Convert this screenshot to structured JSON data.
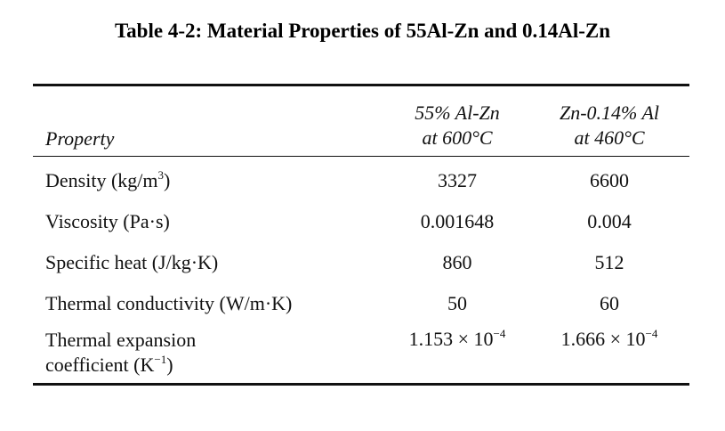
{
  "caption": "Table 4-2: Material Properties of 55Al-Zn and 0.14Al-Zn",
  "table": {
    "headers": {
      "property": "Property",
      "col1_line1": "55% Al-Zn",
      "col1_line2": "at 600°C",
      "col2_line1": "Zn-0.14% Al",
      "col2_line2": "at 460°C"
    },
    "rows": [
      {
        "property": "Density (kg/m",
        "property_sup": "3",
        "property_tail": ")",
        "v1": "3327",
        "v2": "6600"
      },
      {
        "property": "Viscosity (Pa·s)",
        "v1": "0.001648",
        "v2": "0.004"
      },
      {
        "property": "Specific heat (J/kg·K)",
        "v1": "860",
        "v2": "512"
      },
      {
        "property": "Thermal conductivity (W/m·K)",
        "v1": "50",
        "v2": "60"
      },
      {
        "property_line1": "Thermal expansion",
        "property_line2": "coefficient (K",
        "property_sup": "−1",
        "property_tail": ")",
        "v1_base": "1.153 × 10",
        "v1_sup": "−4",
        "v2_base": "1.666 × 10",
        "v2_sup": "−4"
      }
    ]
  }
}
